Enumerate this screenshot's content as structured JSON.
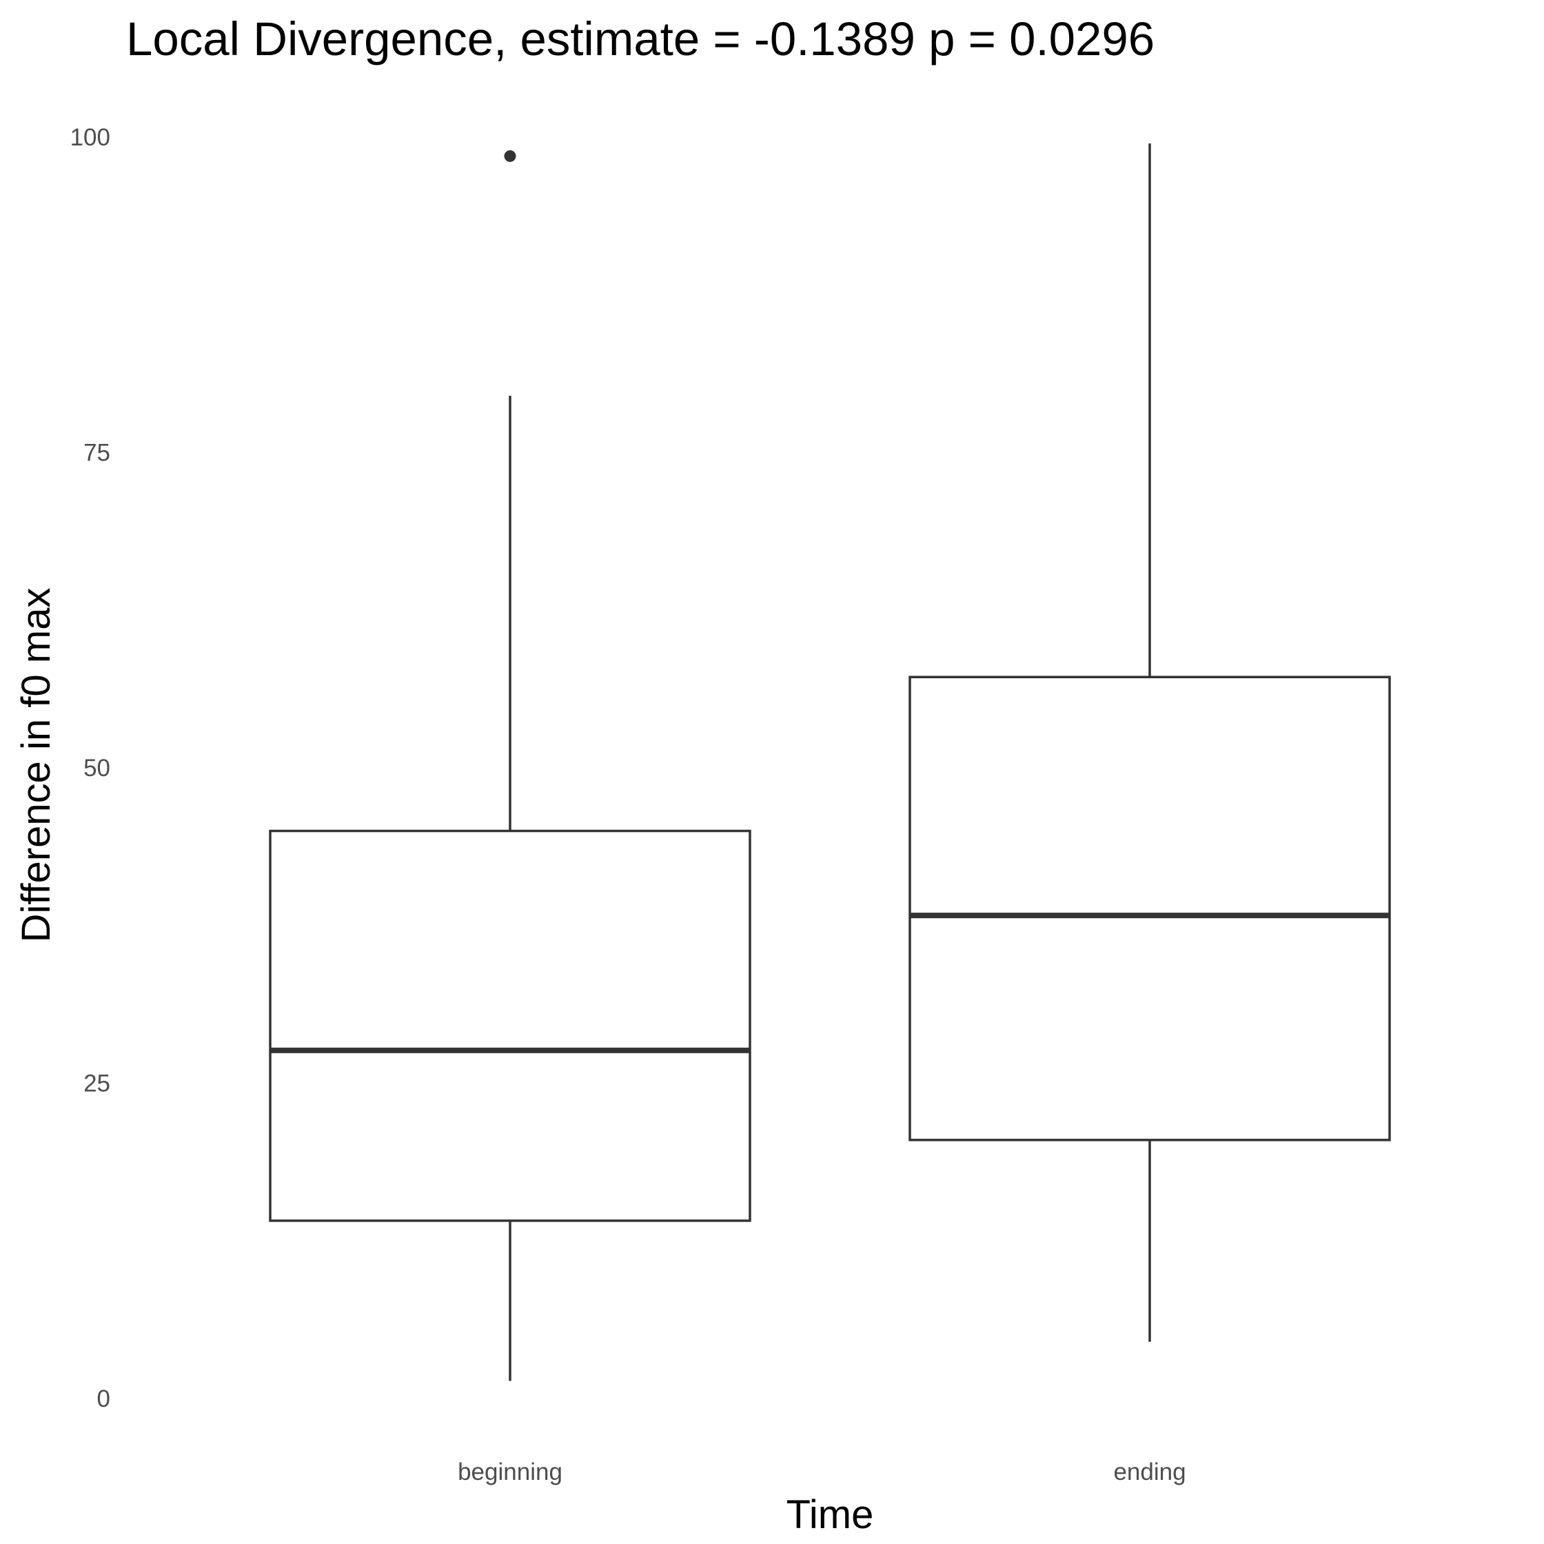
{
  "chart_data": {
    "type": "boxplot",
    "title": "Local Divergence, estimate = -0.1389 p = 0.0296",
    "xlabel": "Time",
    "ylabel": "Difference in f0 max",
    "ylim": [
      0,
      100
    ],
    "yticks": [
      "0",
      "25",
      "50",
      "75",
      "100"
    ],
    "categories": [
      "beginning",
      "ending"
    ],
    "grid": false,
    "legend": "none",
    "box_color": "#333333",
    "box_fill": "#ffffff",
    "boxes": [
      {
        "category": "beginning",
        "whisker_low": 1.4,
        "q1": 14.1,
        "median": 27.6,
        "q3": 45.0,
        "whisker_high": 79.5,
        "outliers": [
          98.5
        ]
      },
      {
        "category": "ending",
        "whisker_low": 4.5,
        "q1": 20.5,
        "median": 38.3,
        "q3": 57.2,
        "whisker_high": 99.5,
        "outliers": []
      }
    ]
  }
}
